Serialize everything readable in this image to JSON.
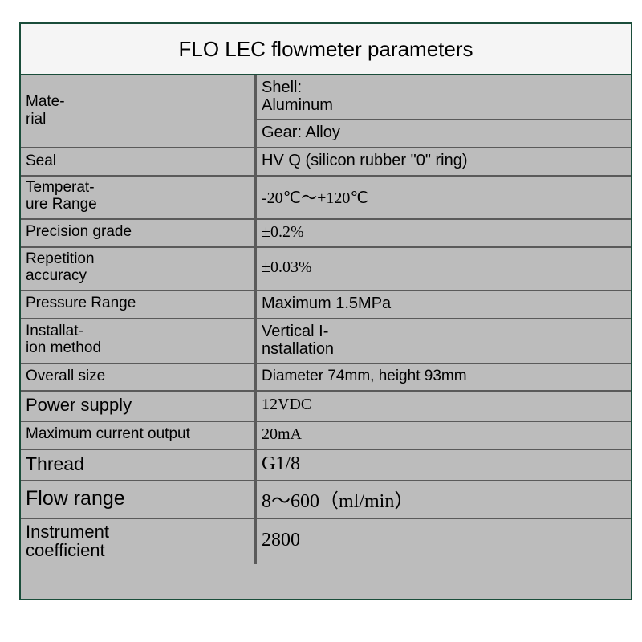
{
  "title": "FLO LEC flowmeter parameters",
  "border_color": "#1a4d3a",
  "row_border_color": "#5a5a5a",
  "bg_color": "#bcbcbc",
  "rows": {
    "material": {
      "label": "Mate-\nrial",
      "shell": "Shell:\nAluminum",
      "gear": "Gear: Alloy"
    },
    "seal": {
      "label": "Seal",
      "value": "HV Q (silicon rubber \"0\" ring)"
    },
    "temp": {
      "label": "Temperat-\nure Range",
      "value": "-20℃～+120℃"
    },
    "precision": {
      "label": "Precision grade",
      "value": "±0.2%"
    },
    "repetition": {
      "label": "Repetition\naccuracy",
      "value": "±0.03%"
    },
    "pressure": {
      "label": "Pressure Range",
      "value": "Maximum 1.5MPa"
    },
    "install": {
      "label": "Installat-\nion method",
      "value": "Vertical I-\nnstallation"
    },
    "size": {
      "label": "Overall size",
      "value": "Diameter 74mm, height 93mm"
    },
    "power": {
      "label": "Power supply",
      "value": "12VDC"
    },
    "current": {
      "label": "Maximum current output",
      "value": "20mA"
    },
    "thread": {
      "label": "Thread",
      "value": "G1/8"
    },
    "flow": {
      "label": "Flow range",
      "value": "8～600（ml/min）"
    },
    "coeff": {
      "label": "Instrument\ncoefficient",
      "value": "2800"
    }
  }
}
